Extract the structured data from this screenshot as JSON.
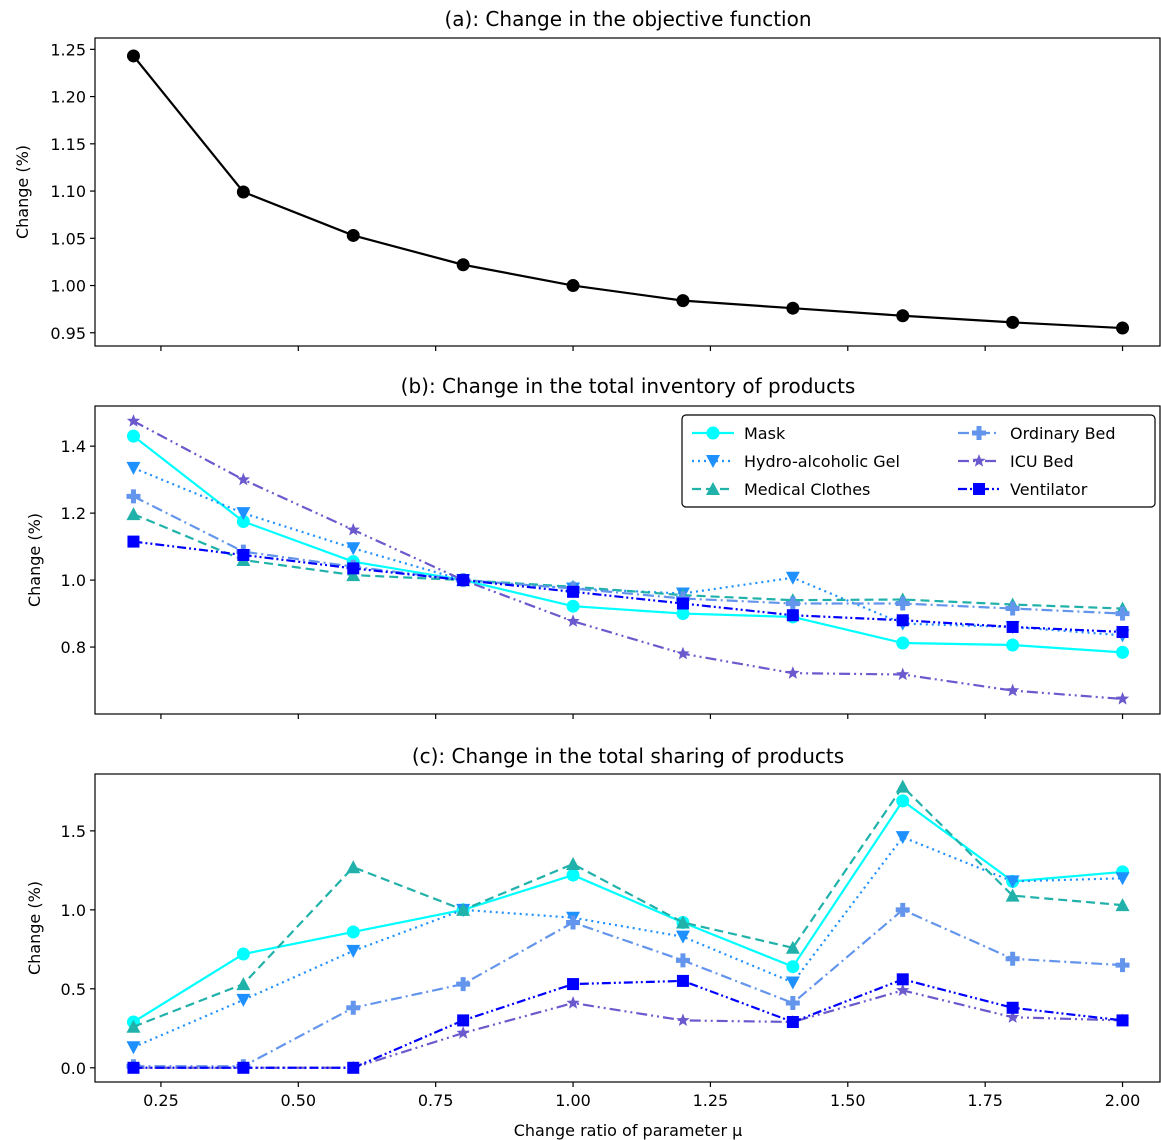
{
  "chart_data": [
    {
      "type": "line",
      "title": "(a): Change in the objective function",
      "ylabel": "Change (%)",
      "xlabel": "",
      "xlim": [
        0.13,
        2.07
      ],
      "ylim": [
        0.936,
        1.262
      ],
      "yticks": [
        0.95,
        1.0,
        1.05,
        1.1,
        1.15,
        1.2,
        1.25
      ],
      "ytick_labels": [
        "0.95",
        "1.00",
        "1.05",
        "1.10",
        "1.15",
        "1.20",
        "1.25"
      ],
      "x": [
        0.2,
        0.4,
        0.6,
        0.8,
        1.0,
        1.2,
        1.4,
        1.6,
        1.8,
        2.0
      ],
      "series": [
        {
          "color": "#000000",
          "marker": "circle",
          "dash": "solid",
          "values": [
            1.243,
            1.099,
            1.053,
            1.022,
            1.0,
            0.984,
            0.976,
            0.968,
            0.961,
            0.955
          ]
        }
      ]
    },
    {
      "type": "line",
      "title": "(b): Change in the total inventory of products",
      "ylabel": "Change (%)",
      "xlabel": "",
      "xlim": [
        0.13,
        2.07
      ],
      "ylim": [
        0.6,
        1.52
      ],
      "yticks": [
        0.8,
        1.0,
        1.2,
        1.4
      ],
      "ytick_labels": [
        "0.8",
        "1.0",
        "1.2",
        "1.4"
      ],
      "legend": "top-right",
      "x": [
        0.2,
        0.4,
        0.6,
        0.8,
        1.0,
        1.2,
        1.4,
        1.6,
        1.8,
        2.0
      ],
      "series": [
        {
          "name": "Mask",
          "color": "#00ffff",
          "marker": "circle",
          "dash": "solid",
          "values": [
            1.43,
            1.175,
            1.055,
            1.0,
            0.922,
            0.9,
            0.89,
            0.812,
            0.806,
            0.784
          ]
        },
        {
          "name": "Hydro-alcoholic Gel",
          "color": "#1e90ff",
          "marker": "tri_down",
          "dash": "dotted",
          "values": [
            1.335,
            1.2,
            1.095,
            1.0,
            0.975,
            0.96,
            1.007,
            0.87,
            0.86,
            0.835
          ]
        },
        {
          "name": "Medical Clothes",
          "color": "#20b2aa",
          "marker": "tri_up",
          "dash": "dashed",
          "values": [
            1.197,
            1.06,
            1.015,
            1.0,
            0.98,
            0.955,
            0.94,
            0.942,
            0.927,
            0.915
          ]
        },
        {
          "name": "Ordinary Bed",
          "color": "#6495ed",
          "marker": "plus",
          "dash": "dashdot",
          "values": [
            1.25,
            1.085,
            1.04,
            1.0,
            0.975,
            0.945,
            0.93,
            0.93,
            0.915,
            0.9
          ]
        },
        {
          "name": "ICU Bed",
          "color": "#6a5acd",
          "marker": "star",
          "dash": "dashdotdot",
          "values": [
            1.475,
            1.3,
            1.15,
            1.0,
            0.877,
            0.78,
            0.722,
            0.718,
            0.67,
            0.645
          ]
        },
        {
          "name": "Ventilator",
          "color": "#0000ff",
          "marker": "square",
          "dash": "dashdotdot2",
          "values": [
            1.115,
            1.075,
            1.035,
            1.0,
            0.965,
            0.93,
            0.895,
            0.88,
            0.86,
            0.845
          ]
        }
      ]
    },
    {
      "type": "line",
      "title": "(c): Change in the total sharing of products",
      "ylabel": "Change (%)",
      "xlabel": "Change ratio of parameter μ",
      "xlim": [
        0.13,
        2.07
      ],
      "ylim": [
        -0.09,
        1.86
      ],
      "yticks": [
        0.0,
        0.5,
        1.0,
        1.5
      ],
      "ytick_labels": [
        "0.0",
        "0.5",
        "1.0",
        "1.5"
      ],
      "xticks": [
        0.25,
        0.5,
        0.75,
        1.0,
        1.25,
        1.5,
        1.75,
        2.0
      ],
      "xtick_labels": [
        "0.25",
        "0.50",
        "0.75",
        "1.00",
        "1.25",
        "1.50",
        "1.75",
        "2.00"
      ],
      "x": [
        0.2,
        0.4,
        0.6,
        0.8,
        1.0,
        1.2,
        1.4,
        1.6,
        1.8,
        2.0
      ],
      "series": [
        {
          "name": "Mask",
          "color": "#00ffff",
          "marker": "circle",
          "dash": "solid",
          "values": [
            0.29,
            0.72,
            0.86,
            1.0,
            1.22,
            0.92,
            0.64,
            1.69,
            1.18,
            1.24
          ]
        },
        {
          "name": "Hydro-alcoholic Gel",
          "color": "#1e90ff",
          "marker": "tri_down",
          "dash": "dotted",
          "values": [
            0.13,
            0.43,
            0.74,
            1.0,
            0.95,
            0.83,
            0.54,
            1.46,
            1.18,
            1.2
          ]
        },
        {
          "name": "Medical Clothes",
          "color": "#20b2aa",
          "marker": "tri_up",
          "dash": "dashed",
          "values": [
            0.26,
            0.53,
            1.27,
            1.0,
            1.29,
            0.92,
            0.76,
            1.78,
            1.09,
            1.03
          ]
        },
        {
          "name": "Ordinary Bed",
          "color": "#6495ed",
          "marker": "plus",
          "dash": "dashdot",
          "values": [
            0.01,
            0.01,
            0.38,
            0.53,
            0.92,
            0.68,
            0.41,
            1.0,
            0.69,
            0.65
          ]
        },
        {
          "name": "ICU Bed",
          "color": "#6a5acd",
          "marker": "star",
          "dash": "dashdotdot",
          "values": [
            0.0,
            0.0,
            0.0,
            0.22,
            0.41,
            0.3,
            0.29,
            0.49,
            0.32,
            0.3
          ]
        },
        {
          "name": "Ventilator",
          "color": "#0000ff",
          "marker": "square",
          "dash": "dashdotdot2",
          "values": [
            0.0,
            0.0,
            0.0,
            0.3,
            0.53,
            0.55,
            0.29,
            0.56,
            0.38,
            0.3
          ]
        }
      ]
    }
  ]
}
